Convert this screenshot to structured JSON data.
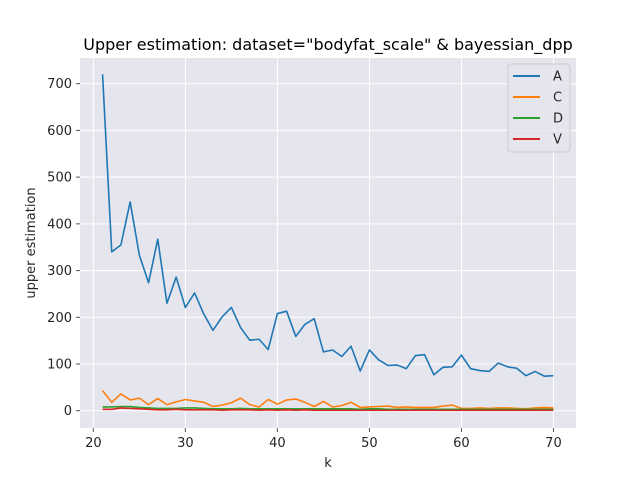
{
  "chart_data": {
    "type": "line",
    "title": "Upper estimation: dataset=\"bodyfat_scale\" & bayessian_dpp",
    "xlabel": "k",
    "ylabel": "upper estimation",
    "xlim": [
      18.55,
      72.45
    ],
    "ylim": [
      -37,
      755
    ],
    "xticks": [
      20,
      30,
      40,
      50,
      60,
      70
    ],
    "yticks": [
      0,
      100,
      200,
      300,
      400,
      500,
      600,
      700
    ],
    "grid": true,
    "legend_position": "top-right",
    "x": [
      21,
      22,
      23,
      24,
      25,
      26,
      27,
      28,
      29,
      30,
      31,
      32,
      33,
      34,
      35,
      36,
      37,
      38,
      39,
      40,
      41,
      42,
      43,
      44,
      45,
      46,
      47,
      48,
      49,
      50,
      51,
      52,
      53,
      54,
      55,
      56,
      57,
      58,
      59,
      60,
      61,
      62,
      63,
      64,
      65,
      66,
      67,
      68,
      69,
      70
    ],
    "series": [
      {
        "name": "A",
        "color": "#1f77b4",
        "values": [
          720,
          340,
          355,
          447,
          333,
          274,
          367,
          230,
          286,
          221,
          252,
          207,
          172,
          201,
          221,
          178,
          151,
          153,
          131,
          208,
          213,
          159,
          185,
          197,
          126,
          130,
          116,
          138,
          85,
          130,
          109,
          97,
          98,
          90,
          118,
          120,
          77,
          93,
          94,
          119,
          90,
          86,
          84,
          102,
          94,
          91,
          75,
          84,
          74,
          75
        ]
      },
      {
        "name": "C",
        "color": "#ff7f0e",
        "values": [
          43,
          18,
          36,
          23,
          27,
          13,
          26,
          13,
          19,
          24,
          21,
          18,
          9,
          12,
          17,
          27,
          13,
          8,
          24,
          14,
          23,
          25,
          18,
          9,
          20,
          8,
          11,
          18,
          7,
          8,
          9,
          10,
          7,
          8,
          7,
          7,
          7,
          10,
          12,
          5,
          5,
          6,
          5,
          6,
          6,
          5,
          4,
          6,
          7,
          6
        ]
      },
      {
        "name": "D",
        "color": "#2ca02c",
        "values": [
          8,
          8,
          9,
          9,
          7,
          6,
          5,
          5,
          5,
          6,
          6,
          5,
          4,
          4,
          4,
          5,
          4,
          4,
          4,
          4,
          4,
          4,
          4,
          4,
          4,
          4,
          4,
          4,
          3,
          4,
          4,
          3,
          3,
          3,
          3,
          3,
          3,
          3,
          3,
          3,
          3,
          3,
          3,
          3,
          3,
          3,
          3,
          3,
          3,
          3
        ]
      },
      {
        "name": "V",
        "color": "#d62728",
        "values": [
          3,
          3,
          6,
          5,
          4,
          3,
          2,
          2,
          3,
          2,
          2,
          2,
          2,
          1,
          2,
          2,
          2,
          1,
          2,
          1,
          2,
          1,
          2,
          1,
          1,
          1,
          1,
          1,
          1,
          1,
          1,
          1,
          1,
          1,
          1,
          1,
          1,
          1,
          1,
          1,
          1,
          1,
          1,
          1,
          1,
          1,
          1,
          1,
          1,
          1
        ]
      }
    ]
  }
}
